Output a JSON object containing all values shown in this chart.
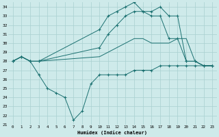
{
  "xlabel": "Humidex (Indice chaleur)",
  "xlim": [
    -0.5,
    23.5
  ],
  "ylim": [
    21,
    34.5
  ],
  "yticks": [
    21,
    22,
    23,
    24,
    25,
    26,
    27,
    28,
    29,
    30,
    31,
    32,
    33,
    34
  ],
  "xticks": [
    0,
    1,
    2,
    3,
    4,
    5,
    6,
    7,
    8,
    9,
    10,
    11,
    12,
    13,
    14,
    15,
    16,
    17,
    18,
    19,
    20,
    21,
    22,
    23
  ],
  "background_color": "#ceeaea",
  "grid_color": "#a8d0d0",
  "line_color": "#1a7070",
  "lines": [
    {
      "x": [
        0,
        1,
        2,
        3,
        10,
        11,
        12,
        13,
        14,
        15,
        16,
        17,
        18,
        19,
        20,
        21,
        22,
        23
      ],
      "y": [
        28.0,
        28.5,
        28.0,
        28.0,
        31.5,
        33.0,
        33.5,
        34.0,
        34.5,
        33.5,
        33.5,
        34.0,
        33.0,
        33.0,
        28.0,
        28.0,
        27.5,
        27.5
      ],
      "marker": true
    },
    {
      "x": [
        0,
        1,
        2,
        3,
        10,
        11,
        12,
        13,
        14,
        15,
        16,
        17,
        18,
        19,
        20,
        21,
        22,
        23
      ],
      "y": [
        28.0,
        28.5,
        28.0,
        28.0,
        29.5,
        31.0,
        32.0,
        33.0,
        33.5,
        33.5,
        33.0,
        33.0,
        30.5,
        30.5,
        28.0,
        28.0,
        27.5,
        27.5
      ],
      "marker": true
    },
    {
      "x": [
        0,
        1,
        2,
        3,
        10,
        11,
        12,
        13,
        14,
        15,
        16,
        17,
        18,
        19,
        20,
        21,
        22,
        23
      ],
      "y": [
        28.0,
        28.5,
        28.0,
        28.0,
        28.5,
        29.0,
        29.5,
        30.0,
        30.5,
        30.5,
        30.0,
        30.0,
        30.0,
        30.5,
        30.5,
        28.0,
        27.5,
        27.5
      ],
      "marker": false
    },
    {
      "x": [
        0,
        1,
        2,
        3,
        4,
        5,
        6,
        7,
        8,
        9,
        10,
        11,
        12,
        13,
        14,
        15,
        16,
        17,
        18,
        19,
        20,
        21,
        22,
        23
      ],
      "y": [
        28.0,
        28.5,
        28.0,
        26.5,
        25.0,
        24.5,
        24.0,
        21.5,
        22.5,
        25.5,
        26.5,
        26.5,
        26.5,
        26.5,
        27.0,
        27.0,
        27.0,
        27.5,
        27.5,
        27.5,
        27.5,
        27.5,
        27.5,
        27.5
      ],
      "marker": true
    }
  ]
}
